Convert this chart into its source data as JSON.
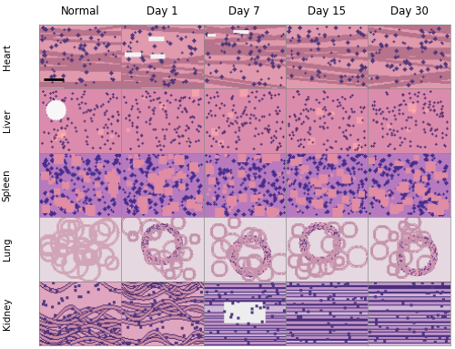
{
  "col_labels": [
    "Normal",
    "Day 1",
    "Day 7",
    "Day 15",
    "Day 30"
  ],
  "row_labels": [
    "Heart",
    "Liver",
    "Spleen",
    "Lung",
    "Kidney"
  ],
  "n_rows": 5,
  "n_cols": 5,
  "fig_width": 5.0,
  "fig_height": 3.83,
  "dpi": 100,
  "bg_color": "#ffffff",
  "border_color": "#000000",
  "col_label_fontsize": 8.5,
  "row_label_fontsize": 7.5
}
